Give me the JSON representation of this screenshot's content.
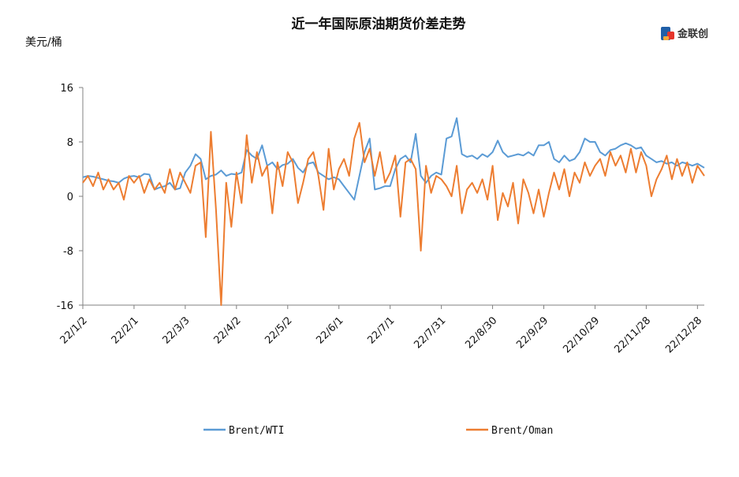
{
  "chart_data": {
    "type": "line",
    "title": "近一年国际原油期货价差走势",
    "ylabel": "美元/桶",
    "ylim": [
      -16,
      16
    ],
    "yticks": [
      16,
      8,
      0,
      -8,
      -16
    ],
    "x_tick_labels": [
      "22/1/2",
      "22/2/1",
      "22/3/3",
      "22/4/2",
      "22/5/2",
      "22/6/1",
      "22/7/1",
      "22/7/31",
      "22/8/30",
      "22/9/29",
      "22/10/29",
      "22/11/28",
      "22/12/28"
    ],
    "x_tick_dates": [
      "2022-01-02",
      "2022-02-01",
      "2022-03-03",
      "2022-04-02",
      "2022-05-02",
      "2022-06-01",
      "2022-07-01",
      "2022-07-31",
      "2022-08-30",
      "2022-09-29",
      "2022-10-29",
      "2022-11-28",
      "2022-12-28"
    ],
    "x_range": [
      "2022-01-02",
      "2023-01-01"
    ],
    "grid": false,
    "legend_position": "bottom",
    "series": [
      {
        "name": "Brent/WTI",
        "color": "#5b9bd5",
        "points": [
          [
            "2022-01-02",
            2.8
          ],
          [
            "2022-01-05",
            3.0
          ],
          [
            "2022-01-08",
            2.9
          ],
          [
            "2022-01-11",
            2.7
          ],
          [
            "2022-01-14",
            2.5
          ],
          [
            "2022-01-17",
            2.3
          ],
          [
            "2022-01-20",
            2.2
          ],
          [
            "2022-01-23",
            2.0
          ],
          [
            "2022-01-26",
            2.6
          ],
          [
            "2022-01-29",
            2.9
          ],
          [
            "2022-02-01",
            3.0
          ],
          [
            "2022-02-04",
            2.8
          ],
          [
            "2022-02-07",
            3.3
          ],
          [
            "2022-02-10",
            3.2
          ],
          [
            "2022-02-13",
            1.0
          ],
          [
            "2022-02-16",
            1.3
          ],
          [
            "2022-02-19",
            1.5
          ],
          [
            "2022-02-22",
            2.0
          ],
          [
            "2022-02-25",
            1.0
          ],
          [
            "2022-02-28",
            1.2
          ],
          [
            "2022-03-03",
            3.5
          ],
          [
            "2022-03-06",
            4.5
          ],
          [
            "2022-03-09",
            6.2
          ],
          [
            "2022-03-12",
            5.5
          ],
          [
            "2022-03-15",
            2.5
          ],
          [
            "2022-03-18",
            3.0
          ],
          [
            "2022-03-21",
            3.2
          ],
          [
            "2022-03-24",
            3.8
          ],
          [
            "2022-03-27",
            3.0
          ],
          [
            "2022-03-30",
            3.3
          ],
          [
            "2022-04-02",
            3.2
          ],
          [
            "2022-04-05",
            3.5
          ],
          [
            "2022-04-08",
            6.8
          ],
          [
            "2022-04-11",
            6.0
          ],
          [
            "2022-04-14",
            5.5
          ],
          [
            "2022-04-17",
            7.5
          ],
          [
            "2022-04-20",
            4.5
          ],
          [
            "2022-04-23",
            5.0
          ],
          [
            "2022-04-26",
            4.0
          ],
          [
            "2022-04-29",
            4.6
          ],
          [
            "2022-05-02",
            4.8
          ],
          [
            "2022-05-05",
            5.5
          ],
          [
            "2022-05-08",
            4.2
          ],
          [
            "2022-05-11",
            3.5
          ],
          [
            "2022-05-14",
            4.8
          ],
          [
            "2022-05-17",
            5.0
          ],
          [
            "2022-05-20",
            3.5
          ],
          [
            "2022-05-23",
            3.0
          ],
          [
            "2022-05-26",
            2.5
          ],
          [
            "2022-05-29",
            2.8
          ],
          [
            "2022-06-01",
            2.5
          ],
          [
            "2022-06-04",
            1.5
          ],
          [
            "2022-06-07",
            0.5
          ],
          [
            "2022-06-10",
            -0.5
          ],
          [
            "2022-06-13",
            3.0
          ],
          [
            "2022-06-16",
            6.5
          ],
          [
            "2022-06-19",
            8.5
          ],
          [
            "2022-06-22",
            1.0
          ],
          [
            "2022-06-25",
            1.2
          ],
          [
            "2022-06-28",
            1.5
          ],
          [
            "2022-07-01",
            1.5
          ],
          [
            "2022-07-04",
            4.0
          ],
          [
            "2022-07-07",
            5.5
          ],
          [
            "2022-07-10",
            6.0
          ],
          [
            "2022-07-13",
            5.0
          ],
          [
            "2022-07-16",
            9.2
          ],
          [
            "2022-07-19",
            3.0
          ],
          [
            "2022-07-22",
            2.0
          ],
          [
            "2022-07-25",
            3.0
          ],
          [
            "2022-07-28",
            3.5
          ],
          [
            "2022-07-31",
            3.2
          ],
          [
            "2022-08-03",
            8.5
          ],
          [
            "2022-08-06",
            8.8
          ],
          [
            "2022-08-09",
            11.5
          ],
          [
            "2022-08-12",
            6.2
          ],
          [
            "2022-08-15",
            5.8
          ],
          [
            "2022-08-18",
            6.0
          ],
          [
            "2022-08-21",
            5.5
          ],
          [
            "2022-08-24",
            6.2
          ],
          [
            "2022-08-27",
            5.8
          ],
          [
            "2022-08-30",
            6.5
          ],
          [
            "2022-09-02",
            8.2
          ],
          [
            "2022-09-05",
            6.5
          ],
          [
            "2022-09-08",
            5.8
          ],
          [
            "2022-09-11",
            6.0
          ],
          [
            "2022-09-14",
            6.2
          ],
          [
            "2022-09-17",
            6.0
          ],
          [
            "2022-09-20",
            6.5
          ],
          [
            "2022-09-23",
            6.0
          ],
          [
            "2022-09-26",
            7.5
          ],
          [
            "2022-09-29",
            7.5
          ],
          [
            "2022-10-02",
            8.0
          ],
          [
            "2022-10-05",
            5.5
          ],
          [
            "2022-10-08",
            5.0
          ],
          [
            "2022-10-11",
            6.0
          ],
          [
            "2022-10-14",
            5.2
          ],
          [
            "2022-10-17",
            5.5
          ],
          [
            "2022-10-20",
            6.5
          ],
          [
            "2022-10-23",
            8.5
          ],
          [
            "2022-10-26",
            8.0
          ],
          [
            "2022-10-29",
            8.0
          ],
          [
            "2022-11-01",
            6.5
          ],
          [
            "2022-11-04",
            6.0
          ],
          [
            "2022-11-07",
            6.8
          ],
          [
            "2022-11-10",
            7.0
          ],
          [
            "2022-11-13",
            7.5
          ],
          [
            "2022-11-16",
            7.8
          ],
          [
            "2022-11-19",
            7.5
          ],
          [
            "2022-11-22",
            7.0
          ],
          [
            "2022-11-25",
            7.2
          ],
          [
            "2022-11-28",
            6.0
          ],
          [
            "2022-12-01",
            5.5
          ],
          [
            "2022-12-04",
            5.0
          ],
          [
            "2022-12-07",
            5.2
          ],
          [
            "2022-12-10",
            4.8
          ],
          [
            "2022-12-13",
            5.0
          ],
          [
            "2022-12-16",
            4.5
          ],
          [
            "2022-12-19",
            5.0
          ],
          [
            "2022-12-22",
            4.8
          ],
          [
            "2022-12-25",
            4.5
          ],
          [
            "2022-12-28",
            4.8
          ],
          [
            "2023-01-01",
            4.2
          ]
        ]
      },
      {
        "name": "Brent/Oman",
        "color": "#ed7d31",
        "points": [
          [
            "2022-01-02",
            2.0
          ],
          [
            "2022-01-05",
            3.0
          ],
          [
            "2022-01-08",
            1.5
          ],
          [
            "2022-01-11",
            3.5
          ],
          [
            "2022-01-14",
            1.0
          ],
          [
            "2022-01-17",
            2.5
          ],
          [
            "2022-01-20",
            1.0
          ],
          [
            "2022-01-23",
            2.0
          ],
          [
            "2022-01-26",
            -0.5
          ],
          [
            "2022-01-29",
            3.0
          ],
          [
            "2022-02-01",
            2.0
          ],
          [
            "2022-02-04",
            3.0
          ],
          [
            "2022-02-07",
            0.5
          ],
          [
            "2022-02-10",
            2.5
          ],
          [
            "2022-02-13",
            1.0
          ],
          [
            "2022-02-16",
            2.0
          ],
          [
            "2022-02-19",
            0.5
          ],
          [
            "2022-02-22",
            4.0
          ],
          [
            "2022-02-25",
            1.0
          ],
          [
            "2022-02-28",
            3.5
          ],
          [
            "2022-03-03",
            2.0
          ],
          [
            "2022-03-06",
            0.5
          ],
          [
            "2022-03-09",
            4.5
          ],
          [
            "2022-03-12",
            5.0
          ],
          [
            "2022-03-15",
            -6.0
          ],
          [
            "2022-03-18",
            9.5
          ],
          [
            "2022-03-21",
            -2.0
          ],
          [
            "2022-03-24",
            -16.0
          ],
          [
            "2022-03-27",
            2.0
          ],
          [
            "2022-03-30",
            -4.5
          ],
          [
            "2022-04-02",
            3.5
          ],
          [
            "2022-04-05",
            -1.0
          ],
          [
            "2022-04-08",
            9.0
          ],
          [
            "2022-04-11",
            2.0
          ],
          [
            "2022-04-14",
            6.5
          ],
          [
            "2022-04-17",
            3.0
          ],
          [
            "2022-04-20",
            4.5
          ],
          [
            "2022-04-23",
            -2.5
          ],
          [
            "2022-04-26",
            5.0
          ],
          [
            "2022-04-29",
            1.5
          ],
          [
            "2022-05-02",
            6.5
          ],
          [
            "2022-05-05",
            5.0
          ],
          [
            "2022-05-08",
            -1.0
          ],
          [
            "2022-05-11",
            2.0
          ],
          [
            "2022-05-14",
            5.5
          ],
          [
            "2022-05-17",
            6.5
          ],
          [
            "2022-05-20",
            3.0
          ],
          [
            "2022-05-23",
            -2.0
          ],
          [
            "2022-05-26",
            7.0
          ],
          [
            "2022-05-29",
            1.0
          ],
          [
            "2022-06-01",
            4.0
          ],
          [
            "2022-06-04",
            5.5
          ],
          [
            "2022-06-07",
            3.0
          ],
          [
            "2022-06-10",
            8.5
          ],
          [
            "2022-06-13",
            10.8
          ],
          [
            "2022-06-16",
            5.0
          ],
          [
            "2022-06-19",
            7.0
          ],
          [
            "2022-06-22",
            3.0
          ],
          [
            "2022-06-25",
            6.5
          ],
          [
            "2022-06-28",
            2.0
          ],
          [
            "2022-07-01",
            3.5
          ],
          [
            "2022-07-04",
            6.0
          ],
          [
            "2022-07-07",
            -3.0
          ],
          [
            "2022-07-10",
            5.0
          ],
          [
            "2022-07-13",
            5.5
          ],
          [
            "2022-07-16",
            4.0
          ],
          [
            "2022-07-19",
            -8.0
          ],
          [
            "2022-07-22",
            4.5
          ],
          [
            "2022-07-25",
            0.5
          ],
          [
            "2022-07-28",
            3.0
          ],
          [
            "2022-07-31",
            2.5
          ],
          [
            "2022-08-03",
            1.5
          ],
          [
            "2022-08-06",
            0.0
          ],
          [
            "2022-08-09",
            4.5
          ],
          [
            "2022-08-12",
            -2.5
          ],
          [
            "2022-08-15",
            1.0
          ],
          [
            "2022-08-18",
            2.0
          ],
          [
            "2022-08-21",
            0.5
          ],
          [
            "2022-08-24",
            2.5
          ],
          [
            "2022-08-27",
            -0.5
          ],
          [
            "2022-08-30",
            4.5
          ],
          [
            "2022-09-02",
            -3.5
          ],
          [
            "2022-09-05",
            0.5
          ],
          [
            "2022-09-08",
            -1.5
          ],
          [
            "2022-09-11",
            2.0
          ],
          [
            "2022-09-14",
            -4.0
          ],
          [
            "2022-09-17",
            2.5
          ],
          [
            "2022-09-20",
            0.5
          ],
          [
            "2022-09-23",
            -2.5
          ],
          [
            "2022-09-26",
            1.0
          ],
          [
            "2022-09-29",
            -3.0
          ],
          [
            "2022-10-02",
            0.5
          ],
          [
            "2022-10-05",
            3.5
          ],
          [
            "2022-10-08",
            1.0
          ],
          [
            "2022-10-11",
            4.0
          ],
          [
            "2022-10-14",
            0.0
          ],
          [
            "2022-10-17",
            3.5
          ],
          [
            "2022-10-20",
            2.0
          ],
          [
            "2022-10-23",
            5.0
          ],
          [
            "2022-10-26",
            3.0
          ],
          [
            "2022-10-29",
            4.5
          ],
          [
            "2022-11-01",
            5.5
          ],
          [
            "2022-11-04",
            3.0
          ],
          [
            "2022-11-07",
            6.5
          ],
          [
            "2022-11-10",
            4.5
          ],
          [
            "2022-11-13",
            6.0
          ],
          [
            "2022-11-16",
            3.5
          ],
          [
            "2022-11-19",
            7.0
          ],
          [
            "2022-11-22",
            3.5
          ],
          [
            "2022-11-25",
            6.5
          ],
          [
            "2022-11-28",
            4.5
          ],
          [
            "2022-12-01",
            0.0
          ],
          [
            "2022-12-04",
            2.5
          ],
          [
            "2022-12-07",
            4.0
          ],
          [
            "2022-12-10",
            6.0
          ],
          [
            "2022-12-13",
            2.5
          ],
          [
            "2022-12-16",
            5.5
          ],
          [
            "2022-12-19",
            3.0
          ],
          [
            "2022-12-22",
            5.0
          ],
          [
            "2022-12-25",
            2.0
          ],
          [
            "2022-12-28",
            4.5
          ],
          [
            "2023-01-01",
            3.0
          ]
        ]
      }
    ]
  },
  "logo": {
    "text": "金联创",
    "mark_colors": [
      "#1f5fa8",
      "#e5352b",
      "#f2a93b"
    ]
  }
}
